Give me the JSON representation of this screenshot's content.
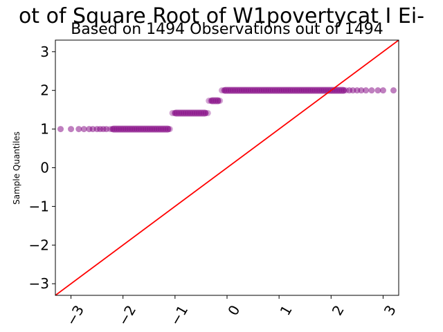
{
  "chart_data": {
    "type": "scatter",
    "title": "ot of Square Root of W1povertycat I Ei-",
    "subtitle": "Based on 1494 Observations out of 1494",
    "xlabel": "",
    "ylabel": "Sample Quantiles",
    "xlim": [
      -3.3,
      3.3
    ],
    "ylim": [
      -3.3,
      3.3
    ],
    "x_ticks": [
      -3,
      -2,
      -1,
      0,
      1,
      2,
      3
    ],
    "x_tick_labels": [
      "−3",
      "−2",
      "−1",
      "0",
      "1",
      "2",
      "3"
    ],
    "y_ticks": [
      -3,
      -2,
      -1,
      0,
      1,
      2,
      3
    ],
    "y_tick_labels": [
      "−3",
      "−2",
      "−1",
      "0",
      "1",
      "2",
      "3"
    ],
    "grid": false,
    "reference_line": {
      "slope": 1,
      "intercept": 0,
      "color": "#ff0000"
    },
    "marker_color": "#800080",
    "series": [
      {
        "segments": [
          {
            "y": 1.0,
            "x_from": -2.25,
            "x_to": -1.07,
            "dense": true
          },
          {
            "y": 1.414,
            "x_from": -1.05,
            "x_to": -0.36,
            "dense": true
          },
          {
            "y": 1.732,
            "x_from": -0.35,
            "x_to": -0.11,
            "dense": true
          },
          {
            "y": 2.0,
            "x_from": -0.1,
            "x_to": 2.3,
            "dense": true
          }
        ],
        "points": [
          {
            "x": -3.2,
            "y": 1.0
          },
          {
            "x": -3.0,
            "y": 1.0
          },
          {
            "x": -2.85,
            "y": 1.0
          },
          {
            "x": -2.75,
            "y": 1.0
          },
          {
            "x": -2.65,
            "y": 1.0
          },
          {
            "x": -2.58,
            "y": 1.0
          },
          {
            "x": -2.5,
            "y": 1.0
          },
          {
            "x": -2.44,
            "y": 1.0
          },
          {
            "x": -2.38,
            "y": 1.0
          },
          {
            "x": -2.32,
            "y": 1.0
          },
          {
            "x": 2.35,
            "y": 2.0
          },
          {
            "x": 2.42,
            "y": 2.0
          },
          {
            "x": 2.5,
            "y": 2.0
          },
          {
            "x": 2.58,
            "y": 2.0
          },
          {
            "x": 2.67,
            "y": 2.0
          },
          {
            "x": 2.78,
            "y": 2.0
          },
          {
            "x": 2.9,
            "y": 2.0
          },
          {
            "x": 3.0,
            "y": 2.0
          },
          {
            "x": 3.2,
            "y": 2.0
          }
        ]
      }
    ]
  }
}
